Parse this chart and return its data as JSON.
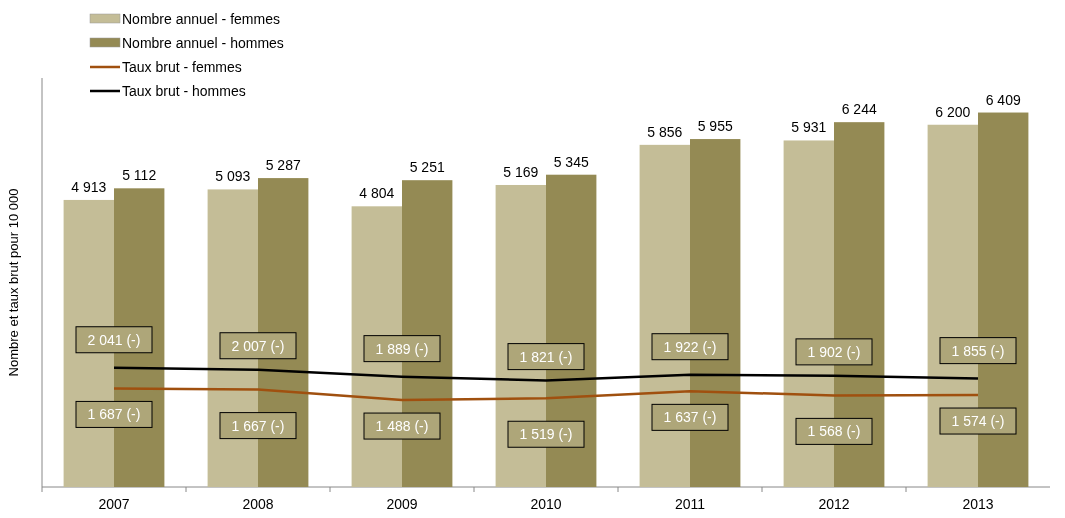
{
  "chart_data": {
    "type": "bar",
    "ylabel": "Nombre et taux brut pour 10 000",
    "categories": [
      "2007",
      "2008",
      "2009",
      "2010",
      "2011",
      "2012",
      "2013"
    ],
    "ylim": [
      0,
      7000
    ],
    "tick_labels": "x",
    "legend": "top left",
    "series": [
      {
        "name": "Nombre annuel - femmes",
        "color": "#c4bd97",
        "values": [
          4913,
          5093,
          4804,
          5169,
          5856,
          5931,
          6200
        ],
        "value_labels": [
          "4 913",
          "5 093",
          "4 804",
          "5 169",
          "5 856",
          "5 931",
          "6 200"
        ]
      },
      {
        "name": "Nombre annuel - hommes",
        "color": "#948a54",
        "values": [
          5112,
          5287,
          5251,
          5345,
          5955,
          6244,
          6409
        ],
        "value_labels": [
          "5 112",
          "5 287",
          "5 251",
          "5 345",
          "5 955",
          "6 244",
          "6 409"
        ]
      },
      {
        "name": "Taux brut - femmes",
        "type": "line",
        "color": "#a0500f",
        "values": [
          1687,
          1667,
          1488,
          1519,
          1637,
          1568,
          1574
        ],
        "value_labels": [
          "1 687 (-)",
          "1 667 (-)",
          "1 488 (-)",
          "1 519 (-)",
          "1 637 (-)",
          "1 568 (-)",
          "1 574 (-)"
        ]
      },
      {
        "name": "Taux brut - hommes",
        "type": "line",
        "color": "#000000",
        "values": [
          2041,
          2007,
          1889,
          1821,
          1922,
          1902,
          1855
        ],
        "value_labels": [
          "2 041 (-)",
          "2 007 (-)",
          "1 889 (-)",
          "1 821 (-)",
          "1 922 (-)",
          "1 902 (-)",
          "1 855 (-)"
        ]
      }
    ]
  }
}
